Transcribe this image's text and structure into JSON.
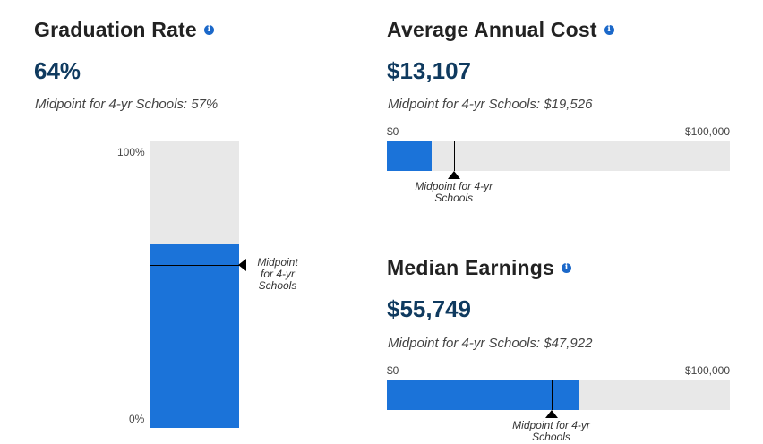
{
  "graduation": {
    "title": "Graduation Rate",
    "value": "64%",
    "midpoint_text": "Midpoint for 4-yr Schools: 57%",
    "tick_top": "100%",
    "tick_bottom": "0%",
    "marker_label_lines": [
      "Midpoint",
      "for 4-yr",
      "Schools"
    ]
  },
  "cost": {
    "title": "Average Annual Cost",
    "value": "$13,107",
    "midpoint_text": "Midpoint for 4-yr Schools: $19,526",
    "tick_min": "$0",
    "tick_max": "$100,000",
    "marker_label_lines": [
      "Midpoint for 4-yr",
      "Schools"
    ]
  },
  "earnings": {
    "title": "Median Earnings",
    "value": "$55,749",
    "midpoint_text": "Midpoint for 4-yr Schools: $47,922",
    "tick_min": "$0",
    "tick_max": "$100,000",
    "marker_label_lines": [
      "Midpoint for 4-yr",
      "Schools"
    ]
  },
  "colors": {
    "fill": "#1b73d9",
    "track": "#e8e8e8",
    "value_text": "#0f3a5f",
    "info_icon": "#1b68c9"
  },
  "icons": {
    "info": "info-icon"
  },
  "chart_data": [
    {
      "type": "bar",
      "orientation": "vertical",
      "categories": [
        "Graduation Rate"
      ],
      "values": [
        64
      ],
      "reference": 57,
      "ylim": [
        0,
        100
      ]
    },
    {
      "type": "bar",
      "orientation": "horizontal",
      "categories": [
        "Average Annual Cost"
      ],
      "values": [
        13107
      ],
      "reference": 19526,
      "xlim": [
        0,
        100000
      ]
    },
    {
      "type": "bar",
      "orientation": "horizontal",
      "categories": [
        "Median Earnings"
      ],
      "values": [
        55749
      ],
      "reference": 47922,
      "xlim": [
        0,
        100000
      ]
    }
  ]
}
